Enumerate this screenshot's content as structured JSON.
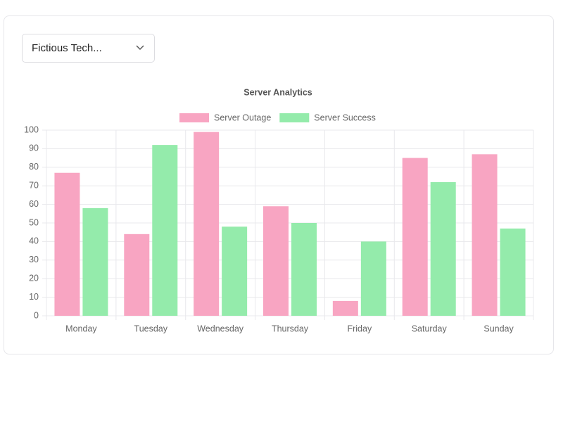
{
  "dropdown": {
    "label": "Fictious Tech..."
  },
  "chart_data": {
    "type": "bar",
    "title": "Server Analytics",
    "categories": [
      "Monday",
      "Tuesday",
      "Wednesday",
      "Thursday",
      "Friday",
      "Saturday",
      "Sunday"
    ],
    "series": [
      {
        "name": "Server Outage",
        "color": "#f8a5c2",
        "values": [
          77,
          44,
          99,
          59,
          8,
          85,
          87
        ]
      },
      {
        "name": "Server Success",
        "color": "#94ebab",
        "values": [
          58,
          92,
          48,
          50,
          40,
          72,
          47
        ]
      }
    ],
    "ylim": [
      0,
      100
    ],
    "yticks": [
      0,
      10,
      20,
      30,
      40,
      50,
      60,
      70,
      80,
      90,
      100
    ],
    "grid": true,
    "legend": "top"
  }
}
